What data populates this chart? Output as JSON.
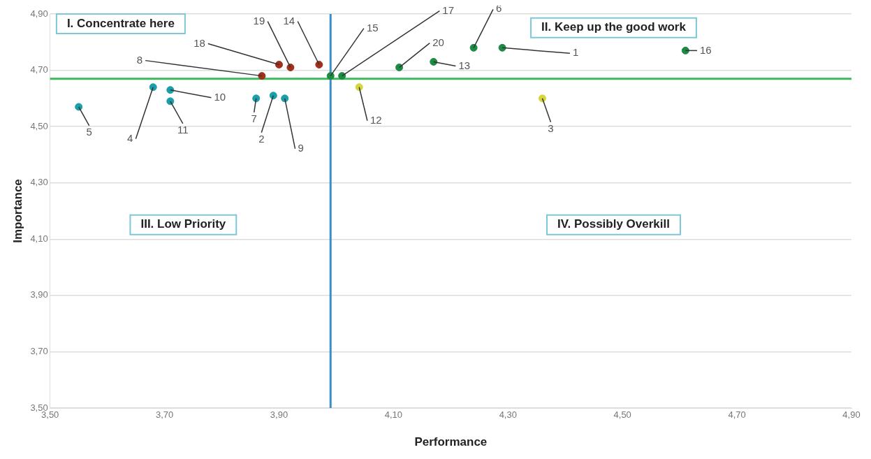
{
  "chart_data": {
    "type": "scatter",
    "xlabel": "Performance",
    "ylabel": "Importance",
    "x": [
      4.29,
      3.89,
      4.36,
      3.68,
      3.55,
      4.24,
      3.86,
      3.87,
      3.91,
      3.71,
      3.71,
      4.04,
      4.17,
      3.97,
      3.99,
      4.61,
      4.01,
      3.9,
      3.92,
      4.11
    ],
    "values": [
      4.78,
      4.61,
      4.6,
      4.64,
      4.57,
      4.78,
      4.6,
      4.68,
      4.6,
      4.63,
      4.59,
      4.64,
      4.73,
      4.72,
      4.68,
      4.77,
      4.68,
      4.72,
      4.71,
      4.71
    ],
    "colors": [
      "#1e8a44",
      "#1a9fa8",
      "#d6d63c",
      "#1a9fa8",
      "#1a9fa8",
      "#1e8a44",
      "#1a9fa8",
      "#a0301a",
      "#1a9fa8",
      "#1a9fa8",
      "#1a9fa8",
      "#d6d63c",
      "#1e8a44",
      "#a0301a",
      "#1e8a44",
      "#1e8a44",
      "#1e8a44",
      "#a0301a",
      "#a0301a",
      "#1e8a44"
    ],
    "marker": "circle",
    "grid": "y",
    "legend": false,
    "xlim": [
      3.5,
      4.9
    ],
    "xticks": [
      {
        "value": 3.5,
        "label": "3,50"
      },
      {
        "value": 3.7,
        "label": "3,70"
      },
      {
        "value": 3.9,
        "label": "3,90"
      },
      {
        "value": 4.1,
        "label": "4,10"
      },
      {
        "value": 4.3,
        "label": "4,30"
      },
      {
        "value": 4.5,
        "label": "4,50"
      },
      {
        "value": 4.7,
        "label": "4,70"
      },
      {
        "value": 4.9,
        "label": "4,90"
      }
    ],
    "ylim": [
      3.5,
      4.9
    ],
    "yticks": [
      {
        "value": 3.5,
        "label": "3,50"
      },
      {
        "value": 3.7,
        "label": "3,70"
      },
      {
        "value": 3.9,
        "label": "3,90"
      },
      {
        "value": 4.1,
        "label": "4,10"
      },
      {
        "value": 4.3,
        "label": "4,30"
      },
      {
        "value": 4.5,
        "label": "4,50"
      },
      {
        "value": 4.7,
        "label": "4,70"
      },
      {
        "value": 4.9,
        "label": "4,90"
      }
    ],
    "ref_lines": [
      {
        "axis": "y",
        "value": 4.67,
        "color": "#3cb85a"
      },
      {
        "axis": "x",
        "value": 3.99,
        "color": "#3a8fc8"
      }
    ],
    "annotations": [
      {
        "text": "1",
        "x": 4.29,
        "y": 4.78
      },
      {
        "text": "2",
        "x": 3.89,
        "y": 4.61
      },
      {
        "text": "3",
        "x": 4.36,
        "y": 4.6
      },
      {
        "text": "4",
        "x": 3.68,
        "y": 4.64
      },
      {
        "text": "5",
        "x": 3.55,
        "y": 4.57
      },
      {
        "text": "6",
        "x": 4.24,
        "y": 4.78
      },
      {
        "text": "7",
        "x": 3.86,
        "y": 4.6
      },
      {
        "text": "8",
        "x": 3.87,
        "y": 4.68
      },
      {
        "text": "9",
        "x": 3.91,
        "y": 4.6
      },
      {
        "text": "10",
        "x": 3.71,
        "y": 4.63
      },
      {
        "text": "11",
        "x": 3.71,
        "y": 4.59
      },
      {
        "text": "12",
        "x": 4.04,
        "y": 4.64
      },
      {
        "text": "13",
        "x": 4.17,
        "y": 4.73
      },
      {
        "text": "14",
        "x": 3.97,
        "y": 4.72
      },
      {
        "text": "15",
        "x": 3.99,
        "y": 4.68
      },
      {
        "text": "16",
        "x": 4.61,
        "y": 4.77
      },
      {
        "text": "17",
        "x": 4.01,
        "y": 4.68
      },
      {
        "text": "18",
        "x": 3.9,
        "y": 4.72
      },
      {
        "text": "19",
        "x": 3.92,
        "y": 4.71
      },
      {
        "text": "20",
        "x": 4.11,
        "y": 4.71
      },
      "I. Concentrate here",
      "II. Keep up the good work",
      "III. Low Priority",
      "IV. Possibly Overkill"
    ]
  }
}
